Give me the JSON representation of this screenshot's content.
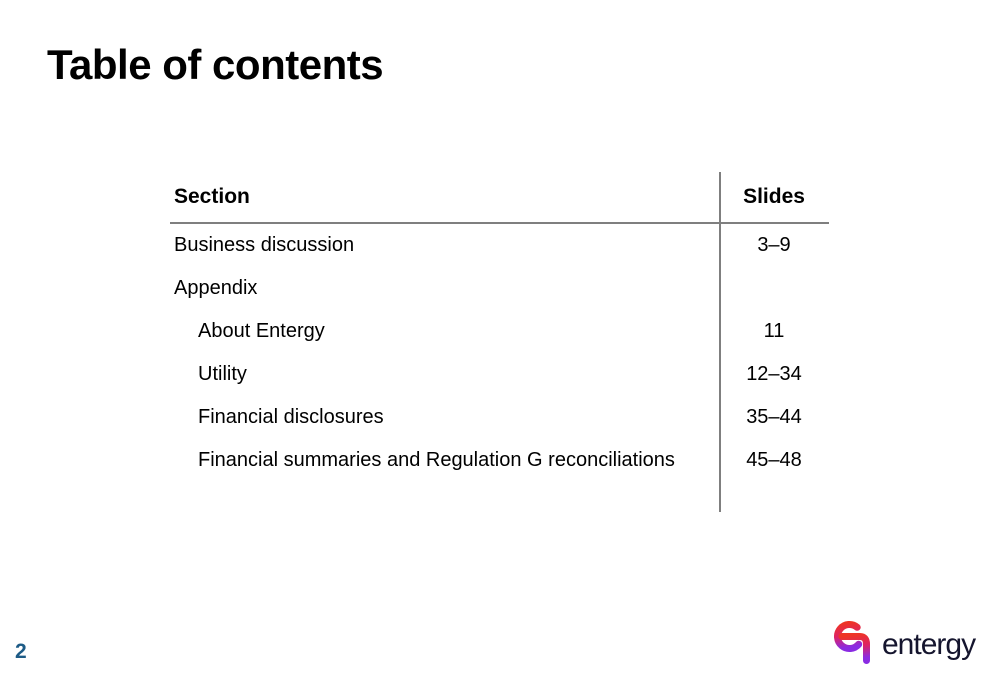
{
  "slide": {
    "title": "Table of contents",
    "page_number": "2"
  },
  "table": {
    "headers": {
      "section": "Section",
      "slides": "Slides"
    },
    "rows": [
      {
        "label": "Business discussion",
        "slides": "3–9",
        "indent": false
      },
      {
        "label": "Appendix",
        "slides": "",
        "indent": false
      },
      {
        "label": "About Entergy",
        "slides": "11",
        "indent": true
      },
      {
        "label": "Utility",
        "slides": "12–34",
        "indent": true
      },
      {
        "label": "Financial disclosures",
        "slides": "35–44",
        "indent": true
      },
      {
        "label": "Financial summaries and Regulation G reconciliations",
        "slides": "45–48",
        "indent": true
      }
    ]
  },
  "logo": {
    "wordmark": "entergy"
  },
  "colors": {
    "text": "#000000",
    "table_line": "#7f7f7f",
    "page_number": "#1d5b86",
    "logo_text": "#15152e",
    "logo_gradient_top": "#ee3425",
    "logo_gradient_mid": "#dd2365",
    "logo_gradient_bottom": "#8a2be2"
  }
}
